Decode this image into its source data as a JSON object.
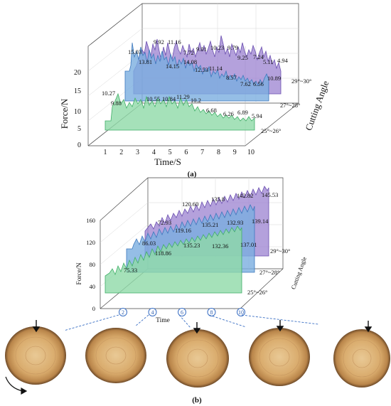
{
  "chart_data": [
    {
      "type": "area",
      "panel_label": "(a)",
      "xlabel": "Time/S",
      "ylabel": "Force/N",
      "zlabel": "Cutting Angle",
      "x_ticks": [
        "1",
        "2",
        "3",
        "4",
        "5",
        "6",
        "7",
        "8",
        "9",
        "10"
      ],
      "y_ticks": [
        "0",
        "5",
        "10",
        "15",
        "20"
      ],
      "ylim": [
        0,
        20
      ],
      "series": [
        {
          "name": "25°~26°",
          "color": "#8fd9a8",
          "peak_labels": [
            "10.27",
            "9.88",
            "10.55",
            "10.84",
            "11.29",
            "10.2",
            "6.68",
            "6.26",
            "6.89",
            "5.94"
          ]
        },
        {
          "name": "27°~28°",
          "color": "#7aaee0",
          "peak_labels": [
            "13.81",
            "14.15",
            "14.08",
            "12.53",
            "11.14",
            "8.57",
            "7.62",
            "6.56",
            "10.89"
          ]
        },
        {
          "name": "29°~30°",
          "color": "#9b82d0",
          "peak_labels": [
            "15.03",
            "9.92",
            "11.16",
            "7.72",
            "9.01",
            "10.23",
            "9.79",
            "9.25",
            "7.24",
            "5.11",
            "4.94"
          ]
        }
      ]
    },
    {
      "type": "area",
      "panel_label": "(b)",
      "xlabel": "Time",
      "ylabel": "Force/N",
      "zlabel": "Cutting Angle",
      "y_ticks": [
        "0",
        "40",
        "80",
        "120",
        "160"
      ],
      "ylim": [
        0,
        160
      ],
      "time_markers": [
        "2",
        "4",
        "6",
        "8",
        "10"
      ],
      "series": [
        {
          "name": "25°~26°",
          "color": "#8fd9a8",
          "peak_labels": [
            "75.33",
            "118.86",
            "135.23",
            "132.36",
            "137.01"
          ]
        },
        {
          "name": "27°~28°",
          "color": "#7aaee0",
          "peak_labels": [
            "86.03",
            "119.16",
            "135.21",
            "132.93",
            "139.14"
          ]
        },
        {
          "name": "29°~30°",
          "color": "#9b82d0",
          "peak_labels": [
            "72.93",
            "120.60",
            "135.8",
            "142.82",
            "145.53"
          ]
        }
      ]
    }
  ],
  "captions": {
    "a": "(a)",
    "b": "(b)"
  },
  "icons": {
    "arrow_down": "arrow-down-icon",
    "rotate": "rotation-arrow-icon"
  }
}
